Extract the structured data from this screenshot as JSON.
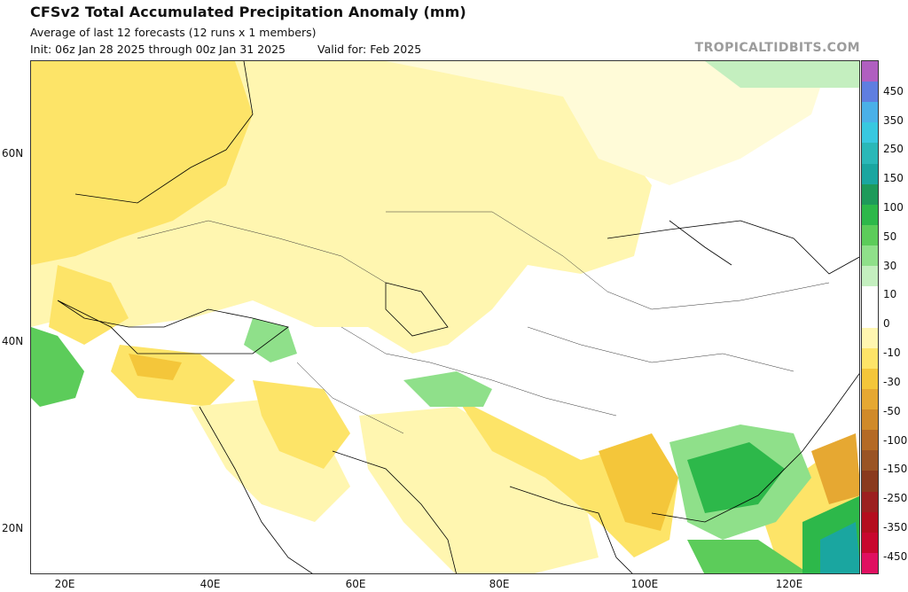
{
  "header": {
    "title": "CFSv2 Total Accumulated Precipitation Anomaly (mm)",
    "subtitle": "Average of last 12 forecasts (12 runs x 1 members)",
    "init": "Init: 06z Jan 28 2025 through 00z Jan 31 2025",
    "valid": "Valid for: Feb 2025",
    "brand": "TROPICALTIDBITS.COM"
  },
  "axes": {
    "lat_ticks": [
      "60N",
      "40N",
      "20N"
    ],
    "lon_ticks": [
      "20E",
      "40E",
      "60E",
      "80E",
      "100E",
      "120E"
    ]
  },
  "colorbar": {
    "labels": [
      "450",
      "350",
      "250",
      "150",
      "100",
      "50",
      "30",
      "10",
      "0",
      "-10",
      "-30",
      "-50",
      "-100",
      "-150",
      "-250",
      "-350",
      "-450"
    ],
    "colors": [
      "#b05fc0",
      "#5f7ee0",
      "#4ab0e8",
      "#38c8e0",
      "#2ab8b8",
      "#1aa6a0",
      "#1e9a5a",
      "#2db84a",
      "#5ccc5a",
      "#8fe08a",
      "#c4efbf",
      "#ffffff",
      "#ffffff",
      "#fff6b0",
      "#fde468",
      "#f4c63a",
      "#e6a832",
      "#d08a2a",
      "#b46a26",
      "#9a5424",
      "#8a3a1e",
      "#9c2020",
      "#b40e1e",
      "#c8082e",
      "#e01060"
    ]
  }
}
